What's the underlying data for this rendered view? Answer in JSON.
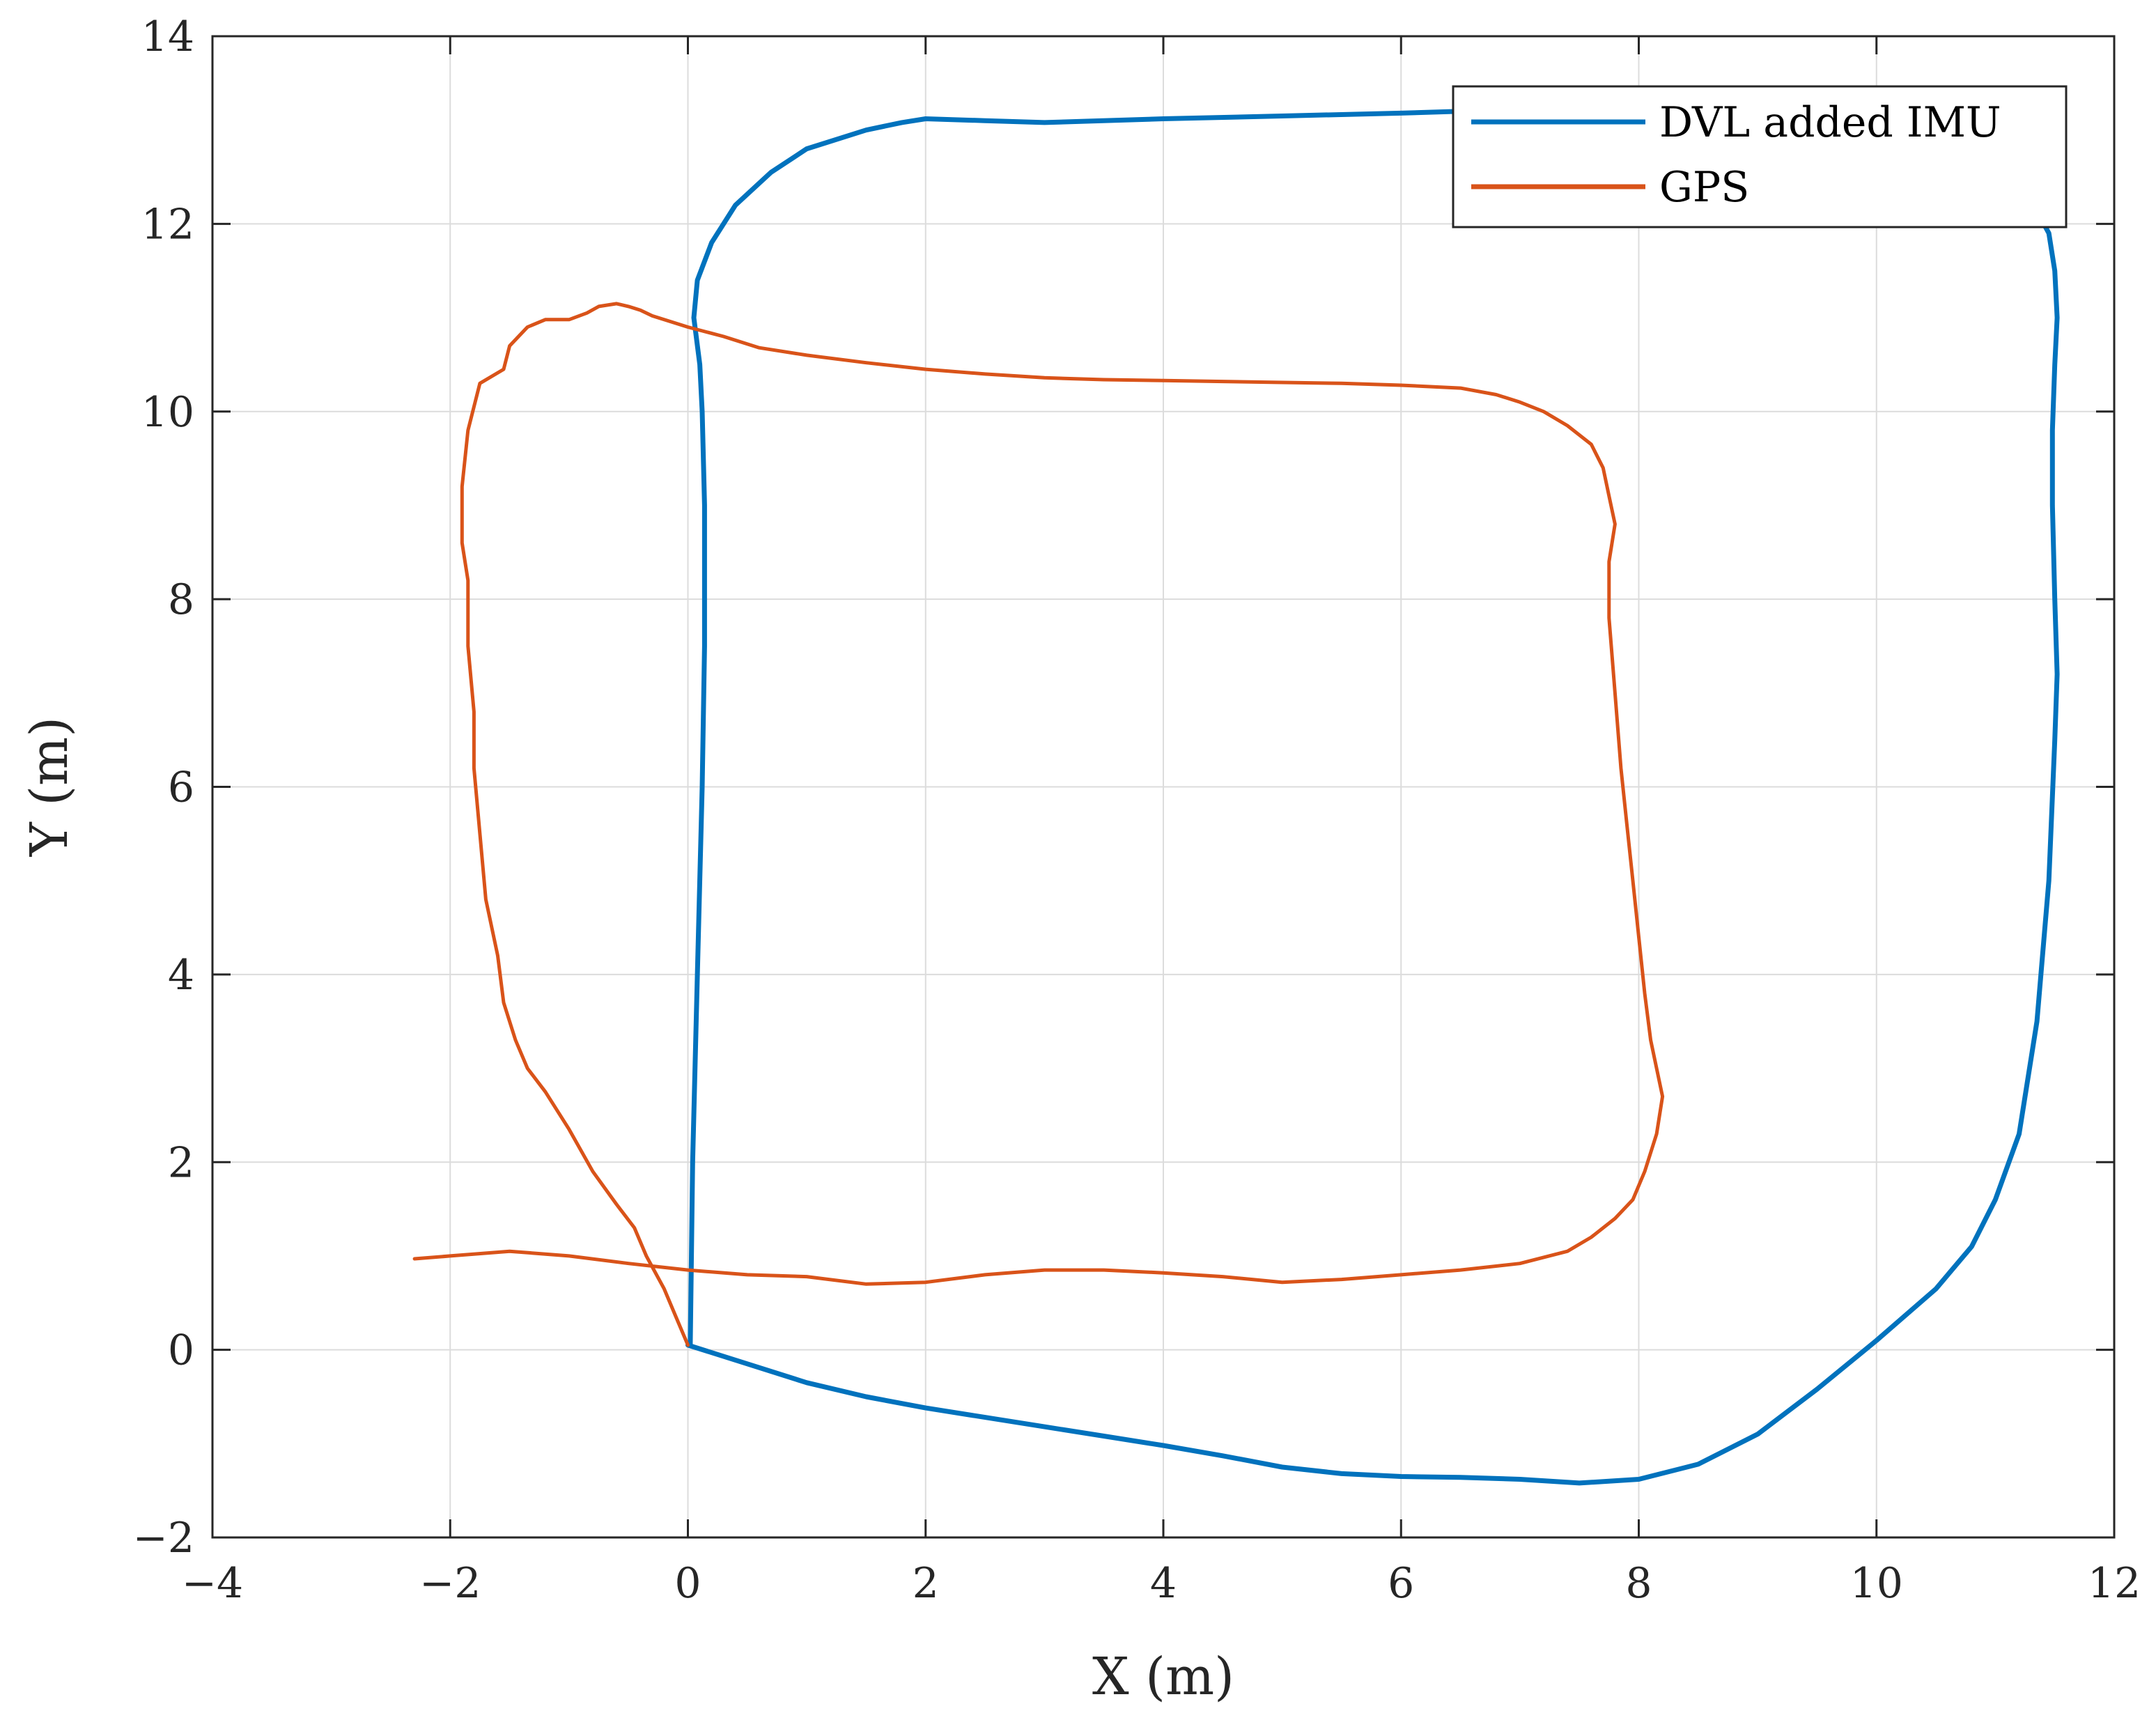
{
  "chart_data": {
    "type": "line",
    "title": "",
    "xlabel": "X (m)",
    "ylabel": "Y (m)",
    "xlim": [
      -4,
      12
    ],
    "ylim": [
      -2,
      14
    ],
    "xticks": [
      -4,
      -2,
      0,
      2,
      4,
      6,
      8,
      10,
      12
    ],
    "yticks": [
      -2,
      0,
      2,
      4,
      6,
      8,
      10,
      12,
      14
    ],
    "xtick_labels": [
      "−4",
      "−2",
      "0",
      "2",
      "4",
      "6",
      "8",
      "10",
      "12"
    ],
    "ytick_labels": [
      "−2",
      "0",
      "2",
      "4",
      "6",
      "8",
      "10",
      "12",
      "14"
    ],
    "grid": true,
    "legend_position": "top-right",
    "series": [
      {
        "name": "DVL added IMU",
        "color": "#0072BD",
        "x": [
          0.0,
          0.5,
          1.0,
          1.5,
          2.0,
          2.5,
          3.0,
          3.5,
          4.0,
          4.5,
          5.0,
          5.5,
          6.0,
          6.5,
          7.0,
          7.5,
          8.0,
          8.5,
          9.0,
          9.5,
          10.0,
          10.5,
          10.8,
          11.0,
          11.2,
          11.35,
          11.45,
          11.5,
          11.52,
          11.5,
          11.48,
          11.48,
          11.5,
          11.52,
          11.5,
          11.45,
          11.3,
          11.0,
          10.5,
          10.0,
          9.0,
          8.0,
          7.0,
          6.5,
          6.0,
          5.0,
          4.0,
          3.0,
          2.5,
          2.0,
          1.8,
          1.5,
          1.0,
          0.7,
          0.4,
          0.2,
          0.08,
          0.05,
          0.1,
          0.12,
          0.14,
          0.14,
          0.12,
          0.08,
          0.04,
          0.02
        ],
        "y": [
          0.05,
          -0.15,
          -0.35,
          -0.5,
          -0.62,
          -0.72,
          -0.82,
          -0.92,
          -1.02,
          -1.13,
          -1.25,
          -1.32,
          -1.35,
          -1.36,
          -1.38,
          -1.42,
          -1.38,
          -1.22,
          -0.9,
          -0.42,
          0.1,
          0.65,
          1.1,
          1.6,
          2.3,
          3.5,
          5.0,
          6.5,
          7.2,
          8.0,
          9.0,
          9.8,
          10.5,
          11.0,
          11.5,
          11.9,
          12.25,
          12.55,
          12.9,
          13.1,
          13.2,
          13.22,
          13.22,
          13.2,
          13.18,
          13.15,
          13.12,
          13.08,
          13.1,
          13.12,
          13.08,
          13.0,
          12.8,
          12.55,
          12.2,
          11.8,
          11.4,
          11.0,
          10.5,
          10.0,
          9.0,
          7.5,
          6.0,
          4.0,
          2.0,
          0.05
        ]
      },
      {
        "name": "GPS",
        "color": "#D95319",
        "x": [
          0.0,
          -0.1,
          -0.2,
          -0.35,
          -0.45,
          -0.6,
          -0.8,
          -1.0,
          -1.2,
          -1.35,
          -1.45,
          -1.55,
          -1.6,
          -1.7,
          -1.75,
          -1.8,
          -1.8,
          -1.85,
          -1.85,
          -1.9,
          -1.9,
          -1.85,
          -1.75,
          -1.55,
          -1.5,
          -1.35,
          -1.2,
          -1.0,
          -0.85,
          -0.75,
          -0.6,
          -0.5,
          -0.4,
          -0.3,
          -0.2,
          0.0,
          0.3,
          0.6,
          1.0,
          1.5,
          2.0,
          2.5,
          3.0,
          3.5,
          4.0,
          4.5,
          5.0,
          5.5,
          6.0,
          6.5,
          6.8,
          7.0,
          7.2,
          7.4,
          7.6,
          7.7,
          7.75,
          7.8,
          7.75,
          7.75,
          7.8,
          7.85,
          7.9,
          7.95,
          8.0,
          8.05,
          8.1,
          8.15,
          8.2,
          8.15,
          8.05,
          7.95,
          7.8,
          7.6,
          7.4,
          7.0,
          6.5,
          6.0,
          5.5,
          5.0,
          4.5,
          4.0,
          3.5,
          3.0,
          2.5,
          2.0,
          1.5,
          1.0,
          0.5,
          0.0,
          -0.5,
          -1.0,
          -1.5,
          -2.0,
          -2.3
        ],
        "y": [
          0.05,
          0.35,
          0.65,
          1.0,
          1.3,
          1.55,
          1.9,
          2.35,
          2.75,
          3.0,
          3.3,
          3.7,
          4.2,
          4.8,
          5.5,
          6.2,
          6.8,
          7.5,
          8.2,
          8.6,
          9.2,
          9.8,
          10.3,
          10.45,
          10.7,
          10.9,
          10.98,
          10.98,
          11.05,
          11.12,
          11.15,
          11.12,
          11.08,
          11.02,
          10.98,
          10.9,
          10.8,
          10.68,
          10.6,
          10.52,
          10.45,
          10.4,
          10.36,
          10.34,
          10.33,
          10.32,
          10.31,
          10.3,
          10.28,
          10.25,
          10.18,
          10.1,
          10.0,
          9.85,
          9.65,
          9.4,
          9.1,
          8.8,
          8.4,
          7.8,
          7.0,
          6.2,
          5.6,
          5.0,
          4.4,
          3.8,
          3.3,
          3.0,
          2.7,
          2.3,
          1.9,
          1.6,
          1.4,
          1.2,
          1.05,
          0.92,
          0.85,
          0.8,
          0.75,
          0.72,
          0.78,
          0.82,
          0.85,
          0.85,
          0.8,
          0.72,
          0.7,
          0.78,
          0.8,
          0.85,
          0.92,
          1.0,
          1.05,
          1.0,
          0.97
        ]
      }
    ]
  }
}
